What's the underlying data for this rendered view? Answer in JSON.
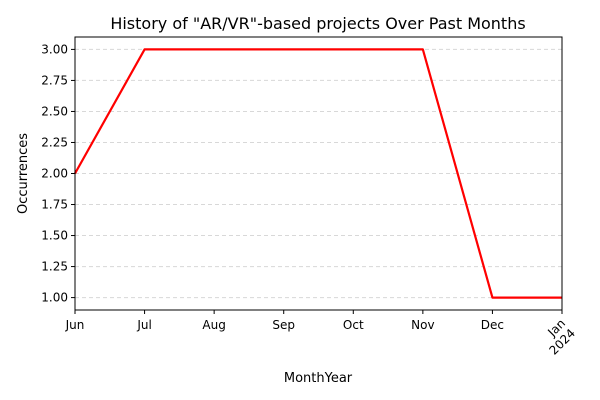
{
  "chart_data": {
    "type": "line",
    "title": "History of \"AR/VR\"-based projects Over Past Months",
    "xlabel": "MonthYear",
    "ylabel": "Occurrences",
    "x": [
      "Jun",
      "Jul",
      "Aug",
      "Sep",
      "Oct",
      "Nov",
      "Dec",
      "Jan 2024"
    ],
    "x_tick_labels": [
      "Jun",
      "Jul",
      "Aug",
      "Sep",
      "Oct",
      "Nov",
      "Dec",
      "Jan\n2024"
    ],
    "series": [
      {
        "values": [
          2,
          3,
          3,
          3,
          3,
          3,
          1,
          1
        ],
        "color": "#ff0000"
      }
    ],
    "ylim": [
      0.9,
      3.1
    ],
    "y_ticks": [
      1.0,
      1.25,
      1.5,
      1.75,
      2.0,
      2.25,
      2.5,
      2.75,
      3.0
    ],
    "y_tick_labels": [
      "1.00",
      "1.25",
      "1.50",
      "1.75",
      "2.00",
      "2.25",
      "2.50",
      "2.75",
      "3.00"
    ],
    "grid": "y-dashed",
    "legend": "none"
  }
}
